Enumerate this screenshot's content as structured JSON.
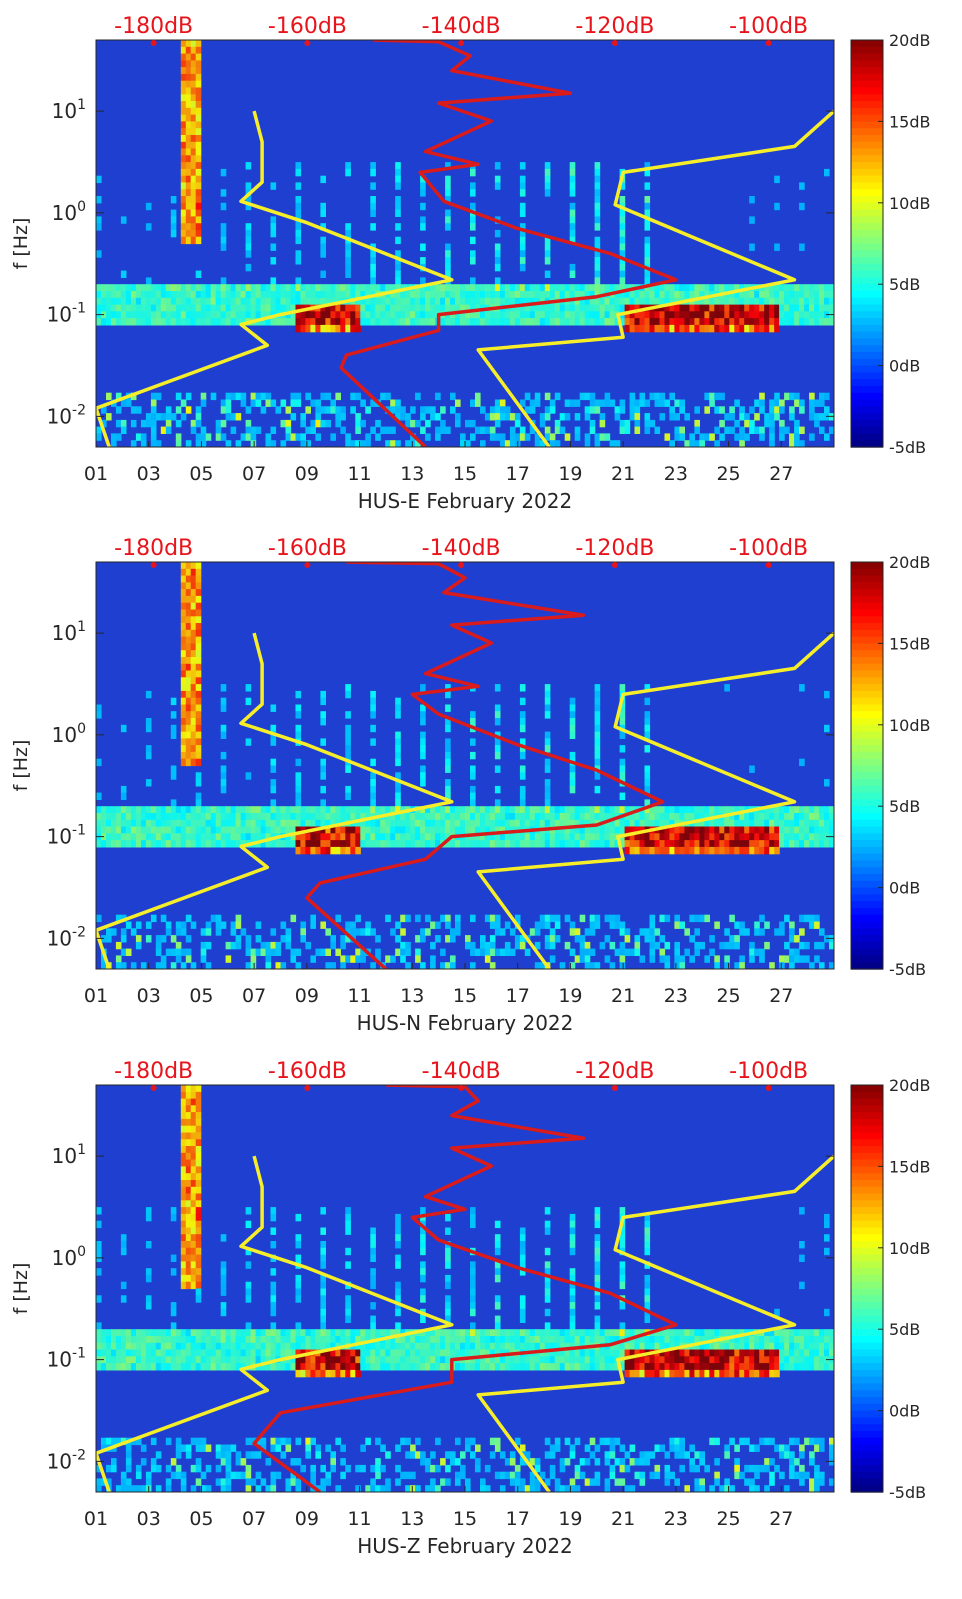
{
  "chart_data": [
    {
      "type": "heatmap",
      "station": "HUS-E",
      "xlabel": "HUS-E February 2022",
      "ylabel": "f [Hz]",
      "x_ticks": [
        "01",
        "03",
        "05",
        "07",
        "09",
        "11",
        "13",
        "15",
        "17",
        "19",
        "21",
        "23",
        "25",
        "27"
      ],
      "x_range_days": [
        1,
        29
      ],
      "y_scale": "log",
      "y_range_hz": [
        0.005,
        50
      ],
      "y_ticks": [
        {
          "value": 0.01,
          "base": "10",
          "exp": "-2"
        },
        {
          "value": 0.1,
          "base": "10",
          "exp": "-1"
        },
        {
          "value": 1,
          "base": "10",
          "exp": "0"
        },
        {
          "value": 10,
          "base": "10",
          "exp": "1"
        }
      ],
      "top_axis_ticks": [
        "-180dB",
        "-160dB",
        "-140dB",
        "-120dB",
        "-100dB"
      ],
      "top_axis_range_db": [
        -187.5,
        -91.5
      ],
      "colorbar": {
        "labels": [
          "20dB",
          "15dB",
          "10dB",
          "5dB",
          "0dB",
          "-5dB"
        ],
        "range_db": [
          -5,
          20
        ],
        "colormap": "jet"
      },
      "yellow_curve": {
        "x_day": [
          7.0,
          7.3,
          7.3,
          6.5,
          9.0,
          14.5,
          8.0,
          6.5,
          7.5,
          1.0,
          1.5
        ],
        "y_hz": [
          10,
          5,
          2,
          1.3,
          0.8,
          0.22,
          0.1,
          0.08,
          0.05,
          0.012,
          0.005
        ]
      },
      "yellow_curve_2": {
        "x_day": [
          29.0,
          27.5,
          21.0,
          20.7,
          27.5,
          20.8,
          21.0,
          15.5,
          18.2
        ],
        "y_hz": [
          10,
          4.5,
          2.5,
          1.2,
          0.22,
          0.1,
          0.06,
          0.045,
          0.005
        ]
      },
      "red_curve": {
        "x_day": [
          11.5,
          14.0,
          15.2,
          14.5,
          19.0,
          14.0,
          16.0,
          13.5,
          15.5,
          13.3,
          14.2,
          17.0,
          20.5,
          23.0,
          20.0,
          14.0,
          14.0,
          10.5,
          10.3,
          13.5
        ],
        "y_hz": [
          50,
          48,
          35,
          25,
          15,
          12,
          8,
          4,
          3,
          2.5,
          1.3,
          0.7,
          0.4,
          0.22,
          0.15,
          0.1,
          0.07,
          0.04,
          0.03,
          0.005
        ]
      }
    },
    {
      "type": "heatmap",
      "station": "HUS-N",
      "xlabel": "HUS-N February 2022",
      "ylabel": "f [Hz]",
      "x_ticks": [
        "01",
        "03",
        "05",
        "07",
        "09",
        "11",
        "13",
        "15",
        "17",
        "19",
        "21",
        "23",
        "25",
        "27"
      ],
      "x_range_days": [
        1,
        29
      ],
      "y_scale": "log",
      "y_range_hz": [
        0.005,
        50
      ],
      "y_ticks": [
        {
          "value": 0.01,
          "base": "10",
          "exp": "-2"
        },
        {
          "value": 0.1,
          "base": "10",
          "exp": "-1"
        },
        {
          "value": 1,
          "base": "10",
          "exp": "0"
        },
        {
          "value": 10,
          "base": "10",
          "exp": "1"
        }
      ],
      "top_axis_ticks": [
        "-180dB",
        "-160dB",
        "-140dB",
        "-120dB",
        "-100dB"
      ],
      "top_axis_range_db": [
        -187.5,
        -91.5
      ],
      "colorbar": {
        "labels": [
          "20dB",
          "15dB",
          "10dB",
          "5dB",
          "0dB",
          "-5dB"
        ],
        "range_db": [
          -5,
          20
        ],
        "colormap": "jet"
      },
      "yellow_curve": {
        "x_day": [
          7.0,
          7.3,
          7.3,
          6.5,
          9.0,
          14.5,
          8.0,
          6.5,
          7.5,
          1.0,
          1.5
        ],
        "y_hz": [
          10,
          5,
          2,
          1.3,
          0.8,
          0.22,
          0.1,
          0.08,
          0.05,
          0.012,
          0.005
        ]
      },
      "yellow_curve_2": {
        "x_day": [
          29.0,
          27.5,
          21.0,
          20.7,
          27.5,
          20.8,
          21.0,
          15.5,
          18.2
        ],
        "y_hz": [
          10,
          4.5,
          2.5,
          1.2,
          0.22,
          0.1,
          0.06,
          0.045,
          0.005
        ]
      },
      "red_curve": {
        "x_day": [
          10.5,
          14.0,
          15.0,
          14.2,
          19.5,
          14.5,
          16.0,
          13.5,
          15.5,
          13.0,
          14.0,
          17.0,
          20.0,
          22.5,
          20.0,
          14.5,
          13.5,
          9.5,
          9.0,
          12.0
        ],
        "y_hz": [
          50,
          48,
          35,
          25,
          15,
          12,
          8,
          4,
          3,
          2.5,
          1.6,
          0.8,
          0.45,
          0.22,
          0.13,
          0.1,
          0.06,
          0.035,
          0.025,
          0.005
        ]
      }
    },
    {
      "type": "heatmap",
      "station": "HUS-Z",
      "xlabel": "HUS-Z February 2022",
      "ylabel": "f [Hz]",
      "x_ticks": [
        "01",
        "03",
        "05",
        "07",
        "09",
        "11",
        "13",
        "15",
        "17",
        "19",
        "21",
        "23",
        "25",
        "27"
      ],
      "x_range_days": [
        1,
        29
      ],
      "y_scale": "log",
      "y_range_hz": [
        0.005,
        50
      ],
      "y_ticks": [
        {
          "value": 0.01,
          "base": "10",
          "exp": "-2"
        },
        {
          "value": 0.1,
          "base": "10",
          "exp": "-1"
        },
        {
          "value": 1,
          "base": "10",
          "exp": "0"
        },
        {
          "value": 10,
          "base": "10",
          "exp": "1"
        }
      ],
      "top_axis_ticks": [
        "-180dB",
        "-160dB",
        "-140dB",
        "-120dB",
        "-100dB"
      ],
      "top_axis_range_db": [
        -187.5,
        -91.5
      ],
      "colorbar": {
        "labels": [
          "20dB",
          "15dB",
          "10dB",
          "5dB",
          "0dB",
          "-5dB"
        ],
        "range_db": [
          -5,
          20
        ],
        "colormap": "jet"
      },
      "yellow_curve": {
        "x_day": [
          7.0,
          7.3,
          7.3,
          6.5,
          9.0,
          14.5,
          8.0,
          6.5,
          7.5,
          1.0,
          1.5
        ],
        "y_hz": [
          10,
          5,
          2,
          1.3,
          0.8,
          0.22,
          0.1,
          0.08,
          0.05,
          0.012,
          0.005
        ]
      },
      "yellow_curve_2": {
        "x_day": [
          29.0,
          27.5,
          21.0,
          20.7,
          27.5,
          20.8,
          21.0,
          15.5,
          18.2
        ],
        "y_hz": [
          10,
          4.5,
          2.5,
          1.2,
          0.22,
          0.1,
          0.06,
          0.045,
          0.005
        ]
      },
      "red_curve": {
        "x_day": [
          12.0,
          15.0,
          15.5,
          14.5,
          19.5,
          14.5,
          16.0,
          13.5,
          15.0,
          13.0,
          14.0,
          17.0,
          20.5,
          23.0,
          20.5,
          14.5,
          14.5,
          8.0,
          7.0,
          9.5
        ],
        "y_hz": [
          50,
          48,
          35,
          25,
          15,
          12,
          8,
          4,
          3,
          2.5,
          1.5,
          0.8,
          0.45,
          0.22,
          0.14,
          0.1,
          0.06,
          0.03,
          0.015,
          0.005
        ]
      }
    }
  ],
  "colors": {
    "red_axis": "#e8141b",
    "red_curve": "#d91b1b",
    "yellow_curve": "#f7ee2a",
    "axis_text": "#262626",
    "background_blue": "#1f3fd0"
  }
}
